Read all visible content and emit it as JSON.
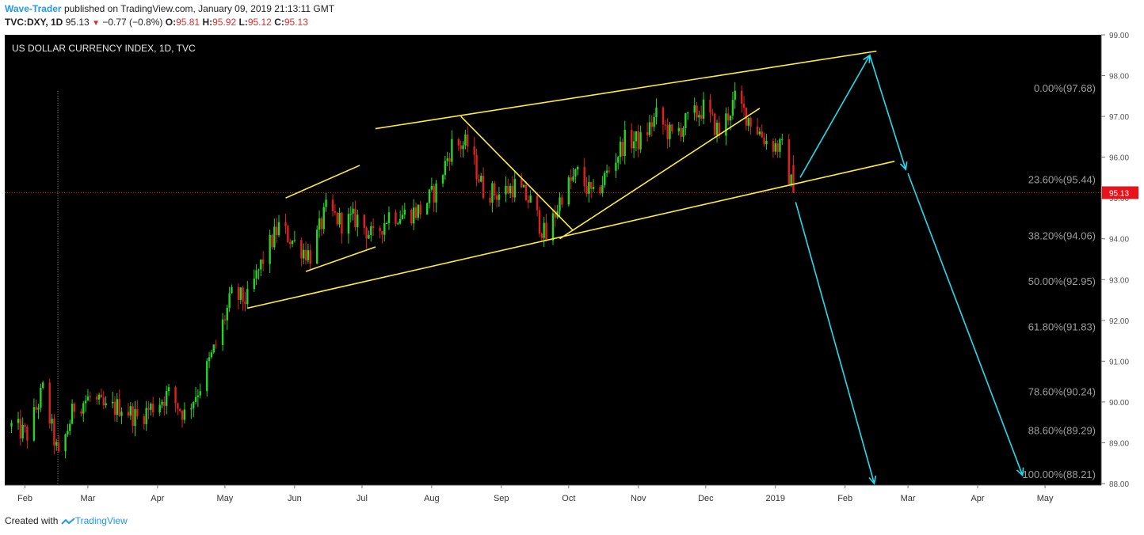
{
  "header": {
    "author": "Wave-Trader",
    "published": "published on TradingView.com, January 09, 2019 21:13:11 GMT",
    "symbol": "TVC:DXY, 1D",
    "last": "95.13",
    "change": "−0.77 (−0.8%)",
    "o_label": "O:",
    "o": "95.81",
    "h_label": "H:",
    "h": "95.92",
    "l_label": "L:",
    "l": "95.12",
    "c_label": "C:",
    "c": "95.13"
  },
  "footer": {
    "created": "Created with",
    "brand": "TradingView"
  },
  "colors": {
    "background": "#000000",
    "up": "#26d426",
    "down": "#e02020",
    "trend": "#ffee33",
    "projection": "#22ddee",
    "fib": "#9e9e9e",
    "price_tag": "#e8131a"
  },
  "chart_data": {
    "type": "candlestick",
    "title": "US DOLLAR CURRENCY INDEX, 1D, TVC",
    "x_labels": [
      "Feb",
      "Mar",
      "Apr",
      "May",
      "Jun",
      "Jul",
      "Aug",
      "Sep",
      "Oct",
      "Nov",
      "Dec",
      "2019",
      "Feb",
      "Mar",
      "Apr",
      "May"
    ],
    "y_ticks": [
      "99.00",
      "98.00",
      "97.00",
      "96.00",
      "95.00",
      "94.00",
      "93.00",
      "92.00",
      "91.00",
      "90.00",
      "89.00",
      "88.00"
    ],
    "ylim": [
      88.0,
      99.0
    ],
    "last_price": "95.13",
    "fib_levels": [
      {
        "label": "0.00%(97.68)",
        "value": 97.68
      },
      {
        "label": "23.60%(95.44)",
        "value": 95.44
      },
      {
        "label": "38.20%(94.06)",
        "value": 94.06
      },
      {
        "label": "50.00%(92.95)",
        "value": 92.95
      },
      {
        "label": "61.80%(91.83)",
        "value": 91.83
      },
      {
        "label": "78.60%(90.24)",
        "value": 90.24
      },
      {
        "label": "88.60%(89.29)",
        "value": 89.29
      },
      {
        "label": "100.00%(88.21)",
        "value": 88.21
      }
    ],
    "price_path": [
      [
        "2018-01-26",
        89.4
      ],
      [
        "2018-02-02",
        89.2
      ],
      [
        "2018-02-09",
        90.3
      ],
      [
        "2018-02-16",
        88.6
      ],
      [
        "2018-02-23",
        89.9
      ],
      [
        "2018-03-02",
        90.1
      ],
      [
        "2018-03-09",
        89.8
      ],
      [
        "2018-03-16",
        89.9
      ],
      [
        "2018-03-23",
        89.6
      ],
      [
        "2018-03-30",
        89.9
      ],
      [
        "2018-04-06",
        90.2
      ],
      [
        "2018-04-13",
        89.7
      ],
      [
        "2018-04-20",
        90.4
      ],
      [
        "2018-04-27",
        91.4
      ],
      [
        "2018-05-04",
        92.6
      ],
      [
        "2018-05-11",
        92.5
      ],
      [
        "2018-05-18",
        93.5
      ],
      [
        "2018-05-25",
        94.3
      ],
      [
        "2018-06-01",
        93.9
      ],
      [
        "2018-06-08",
        93.6
      ],
      [
        "2018-06-15",
        94.7
      ],
      [
        "2018-06-22",
        94.4
      ],
      [
        "2018-06-29",
        94.5
      ],
      [
        "2018-07-06",
        94.0
      ],
      [
        "2018-07-13",
        94.6
      ],
      [
        "2018-07-20",
        94.6
      ],
      [
        "2018-07-27",
        94.7
      ],
      [
        "2018-08-03",
        95.2
      ],
      [
        "2018-08-10",
        96.3
      ],
      [
        "2018-08-17",
        96.3
      ],
      [
        "2018-08-24",
        95.2
      ],
      [
        "2018-08-31",
        95.1
      ],
      [
        "2018-09-07",
        95.3
      ],
      [
        "2018-09-14",
        94.9
      ],
      [
        "2018-09-21",
        94.0
      ],
      [
        "2018-09-28",
        95.1
      ],
      [
        "2018-10-05",
        95.6
      ],
      [
        "2018-10-12",
        95.0
      ],
      [
        "2018-10-19",
        95.7
      ],
      [
        "2018-10-26",
        96.4
      ],
      [
        "2018-11-02",
        96.4
      ],
      [
        "2018-11-09",
        97.0
      ],
      [
        "2018-11-16",
        96.5
      ],
      [
        "2018-11-23",
        96.9
      ],
      [
        "2018-11-30",
        97.2
      ],
      [
        "2018-12-07",
        96.6
      ],
      [
        "2018-12-14",
        97.4
      ],
      [
        "2018-12-21",
        96.9
      ],
      [
        "2018-12-28",
        96.4
      ],
      [
        "2019-01-04",
        96.2
      ],
      [
        "2019-01-09",
        95.13
      ]
    ],
    "drawings": {
      "trend_lines": [
        {
          "from": [
            "2018-05-11",
            92.3
          ],
          "to": [
            "2019-02-23",
            95.9
          ]
        },
        {
          "from": [
            "2018-07-07",
            96.7
          ],
          "to": [
            "2019-02-15",
            98.6
          ]
        },
        {
          "from": [
            "2018-05-28",
            95.0
          ],
          "to": [
            "2018-06-30",
            95.8
          ]
        },
        {
          "from": [
            "2018-06-06",
            93.2
          ],
          "to": [
            "2018-07-07",
            93.8
          ]
        },
        {
          "from": [
            "2018-08-14",
            97.0
          ],
          "to": [
            "2018-10-03",
            94.2
          ]
        },
        {
          "from": [
            "2018-09-27",
            94.0
          ],
          "to": [
            "2018-12-25",
            97.2
          ]
        }
      ],
      "projection_arrows": [
        {
          "from": [
            "2019-01-12",
            95.5
          ],
          "to": [
            "2019-02-12",
            98.5
          ]
        },
        {
          "from": [
            "2019-02-12",
            98.5
          ],
          "to": [
            "2019-02-28",
            95.7
          ]
        },
        {
          "from": [
            "2019-01-10",
            94.9
          ],
          "to": [
            "2019-02-14",
            88.0
          ]
        },
        {
          "from": [
            "2019-03-01",
            95.6
          ],
          "to": [
            "2019-04-21",
            88.2
          ]
        }
      ]
    }
  }
}
